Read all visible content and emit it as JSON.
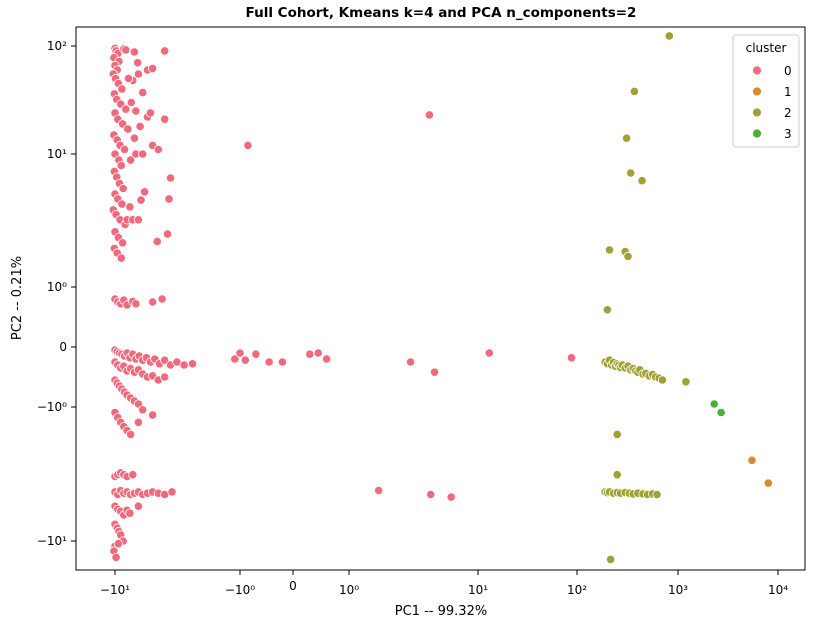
{
  "chart_data": {
    "type": "scatter",
    "title": "Full Cohort, Kmeans k=4 and PCA n_components=2",
    "xlabel": "PC1 -- 99.32%",
    "ylabel": "PC2 -- 0.21%",
    "xscale": "symlog",
    "yscale": "symlog",
    "xlim": [
      -20,
      15000
    ],
    "ylim": [
      -17,
      130
    ],
    "grid": false,
    "legend": {
      "title": "cluster",
      "position": "top-right"
    },
    "x_ticks": [
      {
        "value": -10,
        "label": "−10¹"
      },
      {
        "value": -1,
        "label": "−10⁰"
      },
      {
        "value": 0,
        "label": "0"
      },
      {
        "value": 1,
        "label": "10⁰"
      },
      {
        "value": 10,
        "label": "10¹"
      },
      {
        "value": 100,
        "label": "10²"
      },
      {
        "value": 1000,
        "label": "10³"
      },
      {
        "value": 10000,
        "label": "10⁴"
      }
    ],
    "y_ticks": [
      {
        "value": -10,
        "label": "−10¹"
      },
      {
        "value": -1,
        "label": "−10⁰"
      },
      {
        "value": 0,
        "label": "0"
      },
      {
        "value": 1,
        "label": "10⁰"
      },
      {
        "value": 10,
        "label": "10¹"
      },
      {
        "value": 100,
        "label": "10²"
      }
    ],
    "series": [
      {
        "name": "0",
        "color": "#f0697c",
        "points": [
          [
            -10,
            95
          ],
          [
            -9.8,
            90
          ],
          [
            -9.5,
            85
          ],
          [
            -10.2,
            78
          ],
          [
            -9.3,
            72
          ],
          [
            -10,
            66
          ],
          [
            -9.6,
            60
          ],
          [
            -8.5,
            94
          ],
          [
            -10.3,
            55
          ],
          [
            -9.9,
            50
          ],
          [
            -9.4,
            45
          ],
          [
            -8.8,
            40
          ],
          [
            -10.1,
            36
          ],
          [
            -9.7,
            32
          ],
          [
            -9,
            29
          ],
          [
            -8.2,
            26
          ],
          [
            -10,
            24
          ],
          [
            -9.5,
            21
          ],
          [
            -8.7,
            19
          ],
          [
            -7.9,
            17
          ],
          [
            -10.2,
            15
          ],
          [
            -9.6,
            13.5
          ],
          [
            -9.1,
            12
          ],
          [
            -8.4,
            11
          ],
          [
            -10,
            10
          ],
          [
            -9.3,
            9
          ],
          [
            -8.9,
            8.2
          ],
          [
            -10.1,
            7.4
          ],
          [
            -9.7,
            6.7
          ],
          [
            -9.2,
            6
          ],
          [
            -8.6,
            5.5
          ],
          [
            -10,
            5
          ],
          [
            -9.5,
            4.6
          ],
          [
            -8.8,
            4.2
          ],
          [
            -10.3,
            3.8
          ],
          [
            -9.8,
            3.5
          ],
          [
            -9.1,
            3.2
          ],
          [
            -8.3,
            2.95
          ],
          [
            -10,
            2.6
          ],
          [
            -9.4,
            2.35
          ],
          [
            -8.7,
            2.15
          ],
          [
            -10.1,
            1.95
          ],
          [
            -9.6,
            1.8
          ],
          [
            -8.9,
            1.65
          ],
          [
            -8,
            3.2
          ],
          [
            -7.2,
            3.2
          ],
          [
            -6.5,
            3.2
          ],
          [
            -7.5,
            9
          ],
          [
            -6.8,
            10
          ],
          [
            -6,
            10
          ],
          [
            -7,
            14
          ],
          [
            -6.3,
            18
          ],
          [
            -5.5,
            22
          ],
          [
            -6.8,
            25
          ],
          [
            -5.2,
            24
          ],
          [
            -7.4,
            30
          ],
          [
            -6,
            37
          ],
          [
            -7.2,
            48
          ],
          [
            -6.5,
            55
          ],
          [
            -5.5,
            60
          ],
          [
            -7.8,
            50
          ],
          [
            -8.2,
            92
          ],
          [
            -7,
            88
          ],
          [
            -6.6,
            70
          ],
          [
            -5.8,
            5.2
          ],
          [
            -6.2,
            4.5
          ],
          [
            -7.6,
            4
          ],
          [
            -5,
            62
          ],
          [
            -4.6,
            2.2
          ],
          [
            -5,
            0.75
          ],
          [
            -4.2,
            0.8
          ],
          [
            -4,
            21
          ],
          [
            -3.6,
            6.6
          ],
          [
            -3.7,
            4.6
          ],
          [
            -3.8,
            2.5
          ],
          [
            -4,
            90
          ],
          [
            -5,
            12
          ],
          [
            -4.5,
            11
          ],
          [
            -10,
            0.8
          ],
          [
            -9.5,
            0.75
          ],
          [
            -9,
            0.72
          ],
          [
            -8.5,
            0.78
          ],
          [
            -8,
            0.7
          ],
          [
            -7.2,
            0.76
          ],
          [
            -6.8,
            0.72
          ],
          [
            -10,
            -0.05
          ],
          [
            -9.6,
            -0.08
          ],
          [
            -9.2,
            -0.1
          ],
          [
            -8.8,
            -0.12
          ],
          [
            -8.4,
            -0.15
          ],
          [
            -8,
            -0.1
          ],
          [
            -7.6,
            -0.18
          ],
          [
            -7.2,
            -0.12
          ],
          [
            -6.8,
            -0.2
          ],
          [
            -6.4,
            -0.15
          ],
          [
            -6,
            -0.22
          ],
          [
            -5.6,
            -0.18
          ],
          [
            -5.2,
            -0.25
          ],
          [
            -4.8,
            -0.2
          ],
          [
            -4.4,
            -0.28
          ],
          [
            -4,
            -0.22
          ],
          [
            -3.6,
            -0.3
          ],
          [
            -3.2,
            -0.25
          ],
          [
            -2.8,
            -0.3
          ],
          [
            -2.4,
            -0.28
          ],
          [
            -10,
            -0.25
          ],
          [
            -9.5,
            -0.3
          ],
          [
            -9,
            -0.35
          ],
          [
            -8.5,
            -0.32
          ],
          [
            -8,
            -0.4
          ],
          [
            -7.5,
            -0.36
          ],
          [
            -7,
            -0.42
          ],
          [
            -6.5,
            -0.38
          ],
          [
            -6,
            -0.45
          ],
          [
            -5.5,
            -0.5
          ],
          [
            -5,
            -0.48
          ],
          [
            -4.5,
            -0.55
          ],
          [
            -4,
            -0.5
          ],
          [
            -10,
            -0.55
          ],
          [
            -9.6,
            -0.6
          ],
          [
            -9.2,
            -0.65
          ],
          [
            -8.8,
            -0.7
          ],
          [
            -8.4,
            -0.75
          ],
          [
            -8,
            -0.8
          ],
          [
            -7.5,
            -0.85
          ],
          [
            -7,
            -0.9
          ],
          [
            -6.5,
            -0.95
          ],
          [
            -6,
            -1.05
          ],
          [
            -10,
            -1.1
          ],
          [
            -9.5,
            -1.2
          ],
          [
            -9,
            -1.3
          ],
          [
            -8.5,
            -1.4
          ],
          [
            -8,
            -1.5
          ],
          [
            -7.5,
            -1.6
          ],
          [
            -6.5,
            -1.3
          ],
          [
            -5,
            -1.15
          ],
          [
            -1.1,
            -0.2
          ],
          [
            -1.0,
            -0.1
          ],
          [
            -0.9,
            -0.22
          ],
          [
            -0.7,
            -0.12
          ],
          [
            -0.45,
            -0.25
          ],
          [
            -0.2,
            -0.25
          ],
          [
            0.3,
            -0.12
          ],
          [
            0.45,
            -0.1
          ],
          [
            0.6,
            -0.2
          ],
          [
            3,
            -0.25
          ],
          [
            4.6,
            -0.42
          ],
          [
            13,
            -0.1
          ],
          [
            88,
            -0.18
          ],
          [
            -0.85,
            12
          ],
          [
            4.2,
            23
          ],
          [
            -10,
            -4.3
          ],
          [
            -9.5,
            -4.5
          ],
          [
            -9,
            -4.2
          ],
          [
            -8.5,
            -4.4
          ],
          [
            -8,
            -4.3
          ],
          [
            -7.5,
            -4.5
          ],
          [
            -7,
            -4.4
          ],
          [
            -6.5,
            -4.3
          ],
          [
            -6,
            -4.5
          ],
          [
            -5.5,
            -4.4
          ],
          [
            -5,
            -4.3
          ],
          [
            -4.5,
            -4.4
          ],
          [
            -4,
            -4.5
          ],
          [
            -3.5,
            -4.3
          ],
          [
            -10,
            -3.3
          ],
          [
            -9.5,
            -3.2
          ],
          [
            -9,
            -3.1
          ],
          [
            -8.5,
            -3.2
          ],
          [
            -8,
            -3.3
          ],
          [
            -7.2,
            -3.2
          ],
          [
            -10,
            -5.5
          ],
          [
            -9.5,
            -5.8
          ],
          [
            -9,
            -6
          ],
          [
            -8.5,
            -6.4
          ],
          [
            -8,
            -5.9
          ],
          [
            -7.6,
            -6.2
          ],
          [
            -6.5,
            -5.5
          ],
          [
            -10,
            -7.5
          ],
          [
            -9.6,
            -8
          ],
          [
            -9.3,
            -8.5
          ],
          [
            -9,
            -9
          ],
          [
            -8.6,
            -10
          ],
          [
            -10,
            -11
          ],
          [
            -9.4,
            -10.5
          ],
          [
            -10.2,
            -12
          ],
          [
            -9.8,
            -13.5
          ],
          [
            1.7,
            -4.2
          ],
          [
            4.3,
            -4.5
          ],
          [
            6.2,
            -4.7
          ]
        ]
      },
      {
        "name": "1",
        "color": "#d88b2e",
        "points": [
          [
            5500,
            -2.5
          ],
          [
            8000,
            -3.7
          ]
        ]
      },
      {
        "name": "2",
        "color": "#a1a034",
        "points": [
          [
            820,
            115
          ],
          [
            370,
            38
          ],
          [
            310,
            14
          ],
          [
            340,
            7.2
          ],
          [
            440,
            6.3
          ],
          [
            210,
            1.9
          ],
          [
            300,
            1.85
          ],
          [
            320,
            1.7
          ],
          [
            200,
            0.62
          ],
          [
            190,
            -0.25
          ],
          [
            200,
            -0.28
          ],
          [
            210,
            -0.22
          ],
          [
            220,
            -0.3
          ],
          [
            230,
            -0.26
          ],
          [
            240,
            -0.32
          ],
          [
            250,
            -0.28
          ],
          [
            260,
            -0.3
          ],
          [
            270,
            -0.34
          ],
          [
            280,
            -0.3
          ],
          [
            300,
            -0.35
          ],
          [
            320,
            -0.32
          ],
          [
            340,
            -0.38
          ],
          [
            360,
            -0.36
          ],
          [
            380,
            -0.4
          ],
          [
            400,
            -0.42
          ],
          [
            420,
            -0.38
          ],
          [
            450,
            -0.45
          ],
          [
            480,
            -0.44
          ],
          [
            520,
            -0.48
          ],
          [
            560,
            -0.46
          ],
          [
            600,
            -0.5
          ],
          [
            650,
            -0.52
          ],
          [
            700,
            -0.55
          ],
          [
            1200,
            -0.58
          ],
          [
            250,
            -1.6
          ],
          [
            250,
            -3.2
          ],
          [
            190,
            -4.3
          ],
          [
            200,
            -4.35
          ],
          [
            210,
            -4.3
          ],
          [
            230,
            -4.4
          ],
          [
            250,
            -4.35
          ],
          [
            270,
            -4.4
          ],
          [
            300,
            -4.35
          ],
          [
            330,
            -4.4
          ],
          [
            360,
            -4.45
          ],
          [
            400,
            -4.4
          ],
          [
            450,
            -4.45
          ],
          [
            500,
            -4.5
          ],
          [
            560,
            -4.45
          ],
          [
            620,
            -4.5
          ],
          [
            215,
            -14
          ]
        ]
      },
      {
        "name": "3",
        "color": "#4bb035",
        "points": [
          [
            2300,
            -0.95
          ],
          [
            2700,
            -1.1
          ]
        ]
      }
    ]
  }
}
